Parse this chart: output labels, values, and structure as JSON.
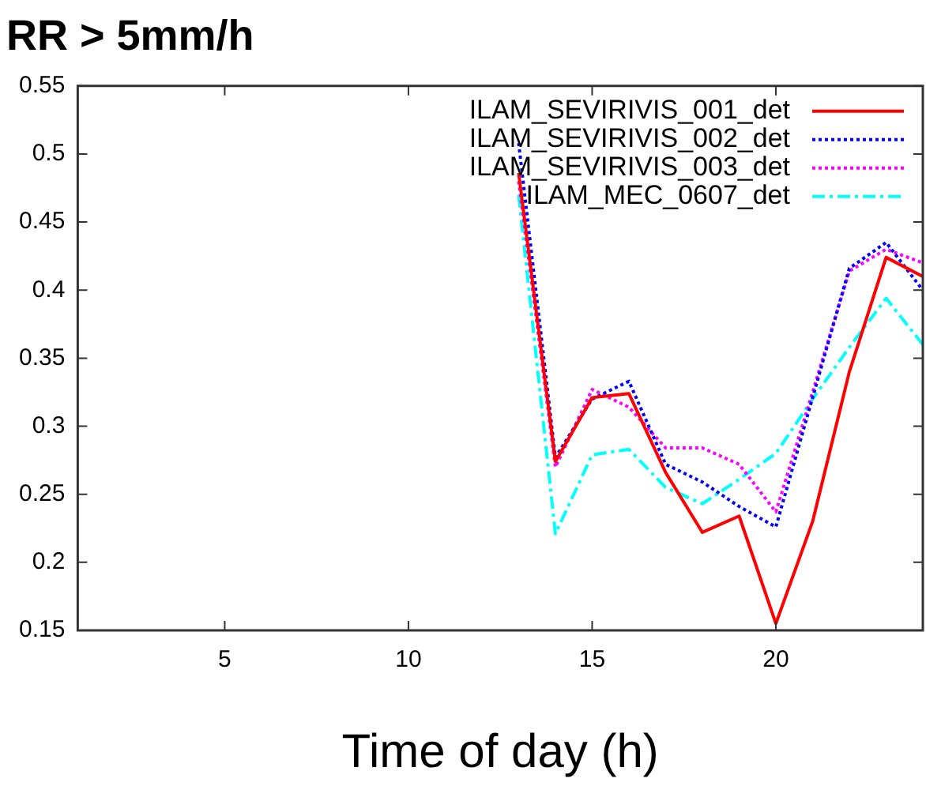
{
  "chart_data": {
    "type": "line",
    "title": "RR > 5mm/h",
    "xlabel": "Time of day (h)",
    "x": [
      13,
      14,
      15,
      16,
      17,
      18,
      19,
      20,
      21,
      22,
      23,
      24
    ],
    "series": [
      {
        "name": "ILAM_SEVIRIVIS_001_det",
        "color": "#ff0000",
        "line_style": "solid",
        "values": [
          0.486,
          0.274,
          0.321,
          0.324,
          0.266,
          0.222,
          0.234,
          0.155,
          0.23,
          0.34,
          0.424,
          0.41
        ]
      },
      {
        "name": "ILAM_SEVIRIVIS_002_det",
        "color": "#0000ff",
        "line_style": "dotted",
        "values": [
          0.508,
          0.277,
          0.32,
          0.333,
          0.272,
          0.259,
          0.241,
          0.226,
          0.321,
          0.416,
          0.435,
          0.4
        ]
      },
      {
        "name": "ILAM_SEVIRIVIS_003_det",
        "color": "#ff00ff",
        "line_style": "dotted",
        "values": [
          0.48,
          0.27,
          0.327,
          0.314,
          0.284,
          0.284,
          0.272,
          0.237,
          0.325,
          0.414,
          0.43,
          0.42
        ]
      },
      {
        "name": "ILAM_MEC_0607_det",
        "color": "#00ffff",
        "line_style": "dashed",
        "values": [
          0.47,
          0.221,
          0.279,
          0.283,
          0.255,
          0.243,
          0.261,
          0.28,
          0.32,
          0.358,
          0.394,
          0.36
        ]
      }
    ],
    "xlim": [
      1,
      24
    ],
    "xticks": [
      5,
      10,
      15,
      20
    ],
    "ylim": [
      0.15,
      0.55
    ],
    "yticks": [
      0.15,
      0.2,
      0.25,
      0.3,
      0.35,
      0.4,
      0.45,
      0.5,
      0.55
    ],
    "grid": false,
    "legend": "top right",
    "marker": "none"
  }
}
